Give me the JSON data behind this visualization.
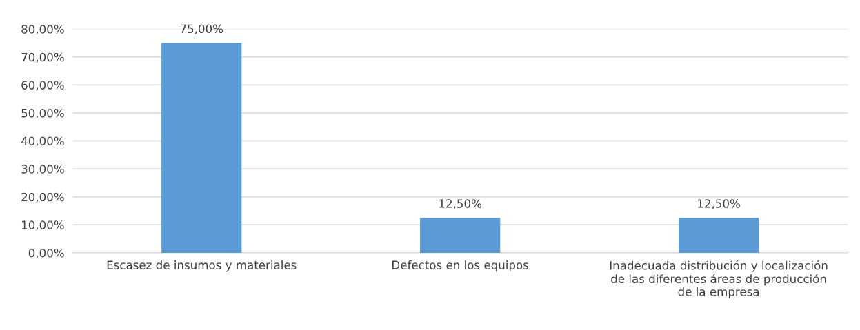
{
  "chart_data": {
    "type": "bar",
    "categories": [
      "Escasez de insumos y materiales",
      "Defectos en los equipos",
      "Inadecuada distribución y localización\nde las diferentes áreas de producción\nde la empresa"
    ],
    "values": [
      75,
      12.5,
      12.5
    ],
    "value_labels": [
      "75,00%",
      "12,50%",
      "12,50%"
    ],
    "color": "#5b9bd5",
    "ylim": [
      0,
      80
    ],
    "yticks": [
      {
        "value": 0,
        "label": "0,00%"
      },
      {
        "value": 10,
        "label": "10,00%"
      },
      {
        "value": 20,
        "label": "20,00%"
      },
      {
        "value": 30,
        "label": "30,00%"
      },
      {
        "value": 40,
        "label": "40,00%"
      },
      {
        "value": 50,
        "label": "50,00%"
      },
      {
        "value": 60,
        "label": "60,00%"
      },
      {
        "value": 70,
        "label": "70,00%"
      },
      {
        "value": 80,
        "label": "80,00%"
      }
    ],
    "grid": "y"
  }
}
